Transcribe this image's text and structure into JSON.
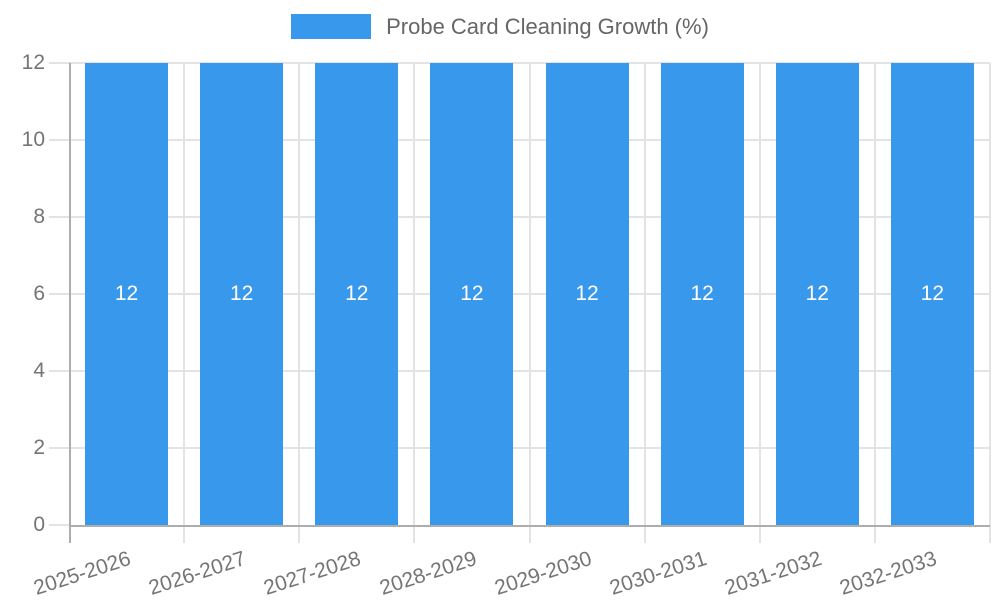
{
  "chart_data": {
    "type": "bar",
    "title": "Probe Card Cleaning Growth (%)",
    "categories": [
      "2025-2026",
      "2026-2027",
      "2027-2028",
      "2028-2029",
      "2029-2030",
      "2030-2031",
      "2031-2032",
      "2032-2033"
    ],
    "series": [
      {
        "name": "Probe Card Cleaning Growth (%)",
        "values": [
          12,
          12,
          12,
          12,
          12,
          12,
          12,
          12
        ],
        "color": "#3898EC"
      }
    ],
    "data_labels": [
      "12",
      "12",
      "12",
      "12",
      "12",
      "12",
      "12",
      "12"
    ],
    "xlabel": "",
    "ylabel": "",
    "ylim": [
      0,
      12
    ],
    "yticks": [
      0,
      2,
      4,
      6,
      8,
      10,
      12
    ],
    "grid": true,
    "legend_position": "top",
    "x_tick_rotation_deg": -18
  },
  "legend": {
    "label": "Probe Card Cleaning Growth (%)",
    "swatch_color": "#3898EC"
  },
  "colors": {
    "bar": "#3898EC",
    "grid_line": "#e3e3e3",
    "axis_line": "#adadad",
    "tick_label": "#757575",
    "legend_text": "#666666",
    "data_label": "#ffffff",
    "background": "#ffffff"
  }
}
